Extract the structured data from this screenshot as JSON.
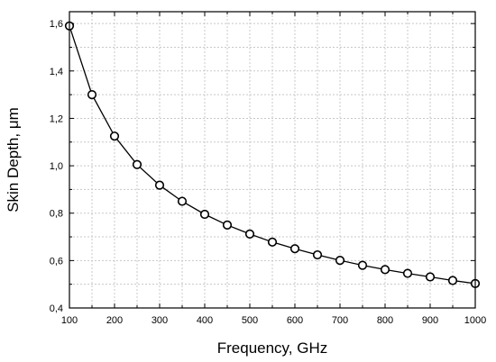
{
  "chart_data": {
    "type": "line",
    "title": "",
    "xlabel": "Frequency, GHz",
    "ylabel": "Skin Depth, μm",
    "xlim": [
      100,
      1000
    ],
    "ylim": [
      0.4,
      1.65
    ],
    "x_ticks": [
      100,
      200,
      300,
      400,
      500,
      600,
      700,
      800,
      900,
      1000
    ],
    "y_ticks": [
      "0,4",
      "0,6",
      "0,8",
      "1,0",
      "1,2",
      "1,4",
      "1,6"
    ],
    "y_tick_values": [
      0.4,
      0.6,
      0.8,
      1.0,
      1.2,
      1.4,
      1.6
    ],
    "grid": true,
    "marker": "open-circle",
    "series": [
      {
        "x": [
          100,
          150,
          200,
          250,
          300,
          350,
          400,
          450,
          500,
          550,
          600,
          650,
          700,
          750,
          800,
          850,
          900,
          950,
          1000
        ],
        "values": [
          1.59,
          1.3,
          1.125,
          1.005,
          0.918,
          0.85,
          0.795,
          0.75,
          0.712,
          0.678,
          0.65,
          0.624,
          0.601,
          0.58,
          0.562,
          0.546,
          0.531,
          0.516,
          0.503
        ]
      }
    ]
  }
}
